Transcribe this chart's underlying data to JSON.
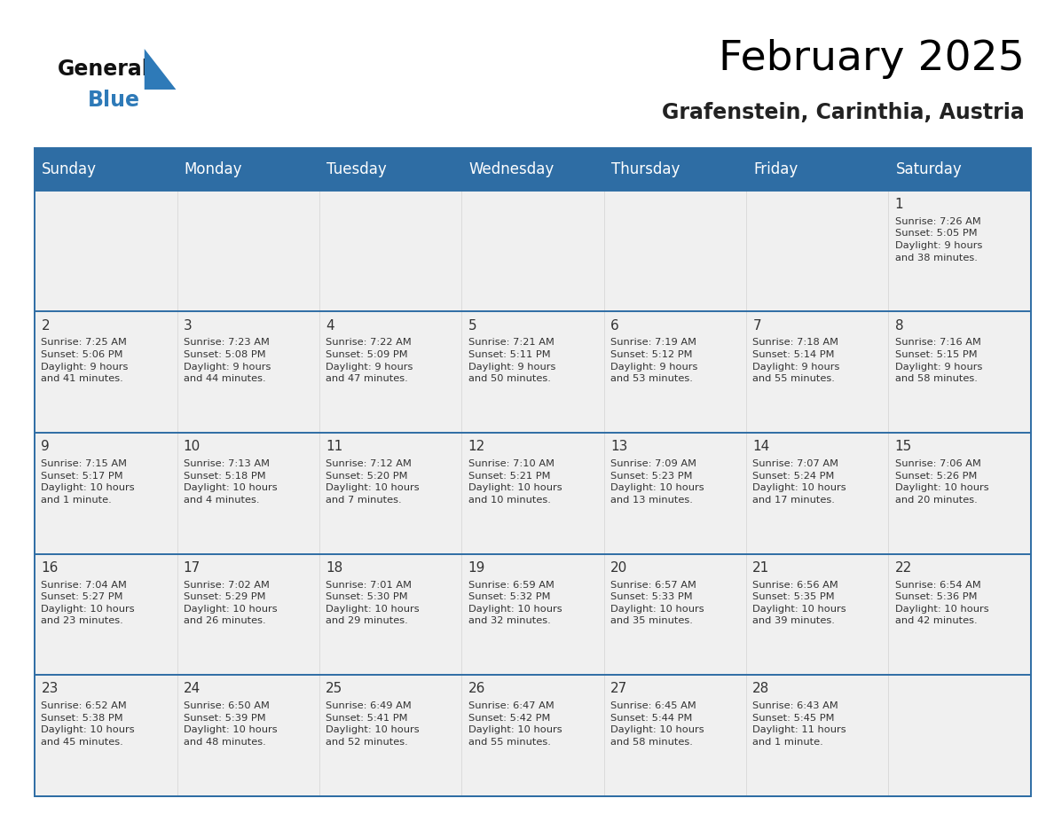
{
  "title": "February 2025",
  "subtitle": "Grafenstein, Carinthia, Austria",
  "header_bg": "#2E6DA4",
  "header_text_color": "#FFFFFF",
  "cell_bg": "#F0F0F0",
  "border_color": "#2E6DA4",
  "text_color": "#333333",
  "day_headers": [
    "Sunday",
    "Monday",
    "Tuesday",
    "Wednesday",
    "Thursday",
    "Friday",
    "Saturday"
  ],
  "calendar_data": [
    [
      null,
      null,
      null,
      null,
      null,
      null,
      {
        "day": 1,
        "sunrise": "7:26 AM",
        "sunset": "5:05 PM",
        "daylight": "9 hours\nand 38 minutes."
      }
    ],
    [
      {
        "day": 2,
        "sunrise": "7:25 AM",
        "sunset": "5:06 PM",
        "daylight": "9 hours\nand 41 minutes."
      },
      {
        "day": 3,
        "sunrise": "7:23 AM",
        "sunset": "5:08 PM",
        "daylight": "9 hours\nand 44 minutes."
      },
      {
        "day": 4,
        "sunrise": "7:22 AM",
        "sunset": "5:09 PM",
        "daylight": "9 hours\nand 47 minutes."
      },
      {
        "day": 5,
        "sunrise": "7:21 AM",
        "sunset": "5:11 PM",
        "daylight": "9 hours\nand 50 minutes."
      },
      {
        "day": 6,
        "sunrise": "7:19 AM",
        "sunset": "5:12 PM",
        "daylight": "9 hours\nand 53 minutes."
      },
      {
        "day": 7,
        "sunrise": "7:18 AM",
        "sunset": "5:14 PM",
        "daylight": "9 hours\nand 55 minutes."
      },
      {
        "day": 8,
        "sunrise": "7:16 AM",
        "sunset": "5:15 PM",
        "daylight": "9 hours\nand 58 minutes."
      }
    ],
    [
      {
        "day": 9,
        "sunrise": "7:15 AM",
        "sunset": "5:17 PM",
        "daylight": "10 hours\nand 1 minute."
      },
      {
        "day": 10,
        "sunrise": "7:13 AM",
        "sunset": "5:18 PM",
        "daylight": "10 hours\nand 4 minutes."
      },
      {
        "day": 11,
        "sunrise": "7:12 AM",
        "sunset": "5:20 PM",
        "daylight": "10 hours\nand 7 minutes."
      },
      {
        "day": 12,
        "sunrise": "7:10 AM",
        "sunset": "5:21 PM",
        "daylight": "10 hours\nand 10 minutes."
      },
      {
        "day": 13,
        "sunrise": "7:09 AM",
        "sunset": "5:23 PM",
        "daylight": "10 hours\nand 13 minutes."
      },
      {
        "day": 14,
        "sunrise": "7:07 AM",
        "sunset": "5:24 PM",
        "daylight": "10 hours\nand 17 minutes."
      },
      {
        "day": 15,
        "sunrise": "7:06 AM",
        "sunset": "5:26 PM",
        "daylight": "10 hours\nand 20 minutes."
      }
    ],
    [
      {
        "day": 16,
        "sunrise": "7:04 AM",
        "sunset": "5:27 PM",
        "daylight": "10 hours\nand 23 minutes."
      },
      {
        "day": 17,
        "sunrise": "7:02 AM",
        "sunset": "5:29 PM",
        "daylight": "10 hours\nand 26 minutes."
      },
      {
        "day": 18,
        "sunrise": "7:01 AM",
        "sunset": "5:30 PM",
        "daylight": "10 hours\nand 29 minutes."
      },
      {
        "day": 19,
        "sunrise": "6:59 AM",
        "sunset": "5:32 PM",
        "daylight": "10 hours\nand 32 minutes."
      },
      {
        "day": 20,
        "sunrise": "6:57 AM",
        "sunset": "5:33 PM",
        "daylight": "10 hours\nand 35 minutes."
      },
      {
        "day": 21,
        "sunrise": "6:56 AM",
        "sunset": "5:35 PM",
        "daylight": "10 hours\nand 39 minutes."
      },
      {
        "day": 22,
        "sunrise": "6:54 AM",
        "sunset": "5:36 PM",
        "daylight": "10 hours\nand 42 minutes."
      }
    ],
    [
      {
        "day": 23,
        "sunrise": "6:52 AM",
        "sunset": "5:38 PM",
        "daylight": "10 hours\nand 45 minutes."
      },
      {
        "day": 24,
        "sunrise": "6:50 AM",
        "sunset": "5:39 PM",
        "daylight": "10 hours\nand 48 minutes."
      },
      {
        "day": 25,
        "sunrise": "6:49 AM",
        "sunset": "5:41 PM",
        "daylight": "10 hours\nand 52 minutes."
      },
      {
        "day": 26,
        "sunrise": "6:47 AM",
        "sunset": "5:42 PM",
        "daylight": "10 hours\nand 55 minutes."
      },
      {
        "day": 27,
        "sunrise": "6:45 AM",
        "sunset": "5:44 PM",
        "daylight": "10 hours\nand 58 minutes."
      },
      {
        "day": 28,
        "sunrise": "6:43 AM",
        "sunset": "5:45 PM",
        "daylight": "11 hours\nand 1 minute."
      },
      null
    ]
  ],
  "logo_general_color": "#111111",
  "logo_blue_color": "#2E7AB8",
  "title_fontsize": 34,
  "subtitle_fontsize": 17,
  "header_fontsize": 12,
  "day_num_fontsize": 11,
  "cell_text_fontsize": 8.2
}
